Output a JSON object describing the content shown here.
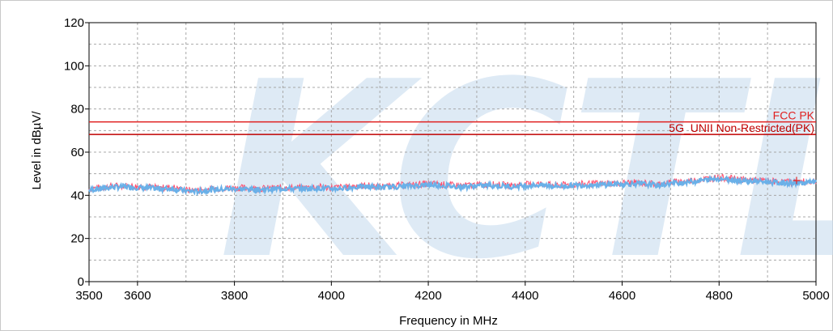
{
  "chart_data": {
    "type": "line",
    "xlabel": "Frequency in MHz",
    "ylabel": "Level in dBµV/",
    "xlim": [
      3500,
      5000
    ],
    "ylim": [
      0,
      120
    ],
    "x_ticks": [
      3500,
      3600,
      3800,
      4000,
      4200,
      4400,
      4600,
      4800,
      5000
    ],
    "y_ticks": [
      0,
      20,
      40,
      60,
      80,
      100,
      120
    ],
    "grid": true,
    "watermark": "KCTL",
    "limit_lines": [
      {
        "name": "FCC PK",
        "value": 74,
        "color": "#e02020"
      },
      {
        "name": "5G_UNII Non-Restricted(PK)",
        "value": 68.2,
        "color": "#c00000"
      }
    ],
    "series": [
      {
        "name": "",
        "color": "#6ab0e8",
        "x": [
          3500,
          3525,
          3550,
          3575,
          3600,
          3625,
          3650,
          3675,
          3700,
          3725,
          3750,
          3775,
          3800,
          3825,
          3850,
          3875,
          3900,
          3925,
          3950,
          3975,
          4000,
          4025,
          4050,
          4075,
          4100,
          4125,
          4150,
          4175,
          4200,
          4225,
          4250,
          4275,
          4300,
          4325,
          4350,
          4375,
          4400,
          4425,
          4450,
          4475,
          4500,
          4525,
          4550,
          4575,
          4600,
          4625,
          4650,
          4675,
          4700,
          4725,
          4750,
          4775,
          4800,
          4825,
          4850,
          4875,
          4900,
          4925,
          4950,
          4975,
          5000
        ],
        "values": [
          42.5,
          43.2,
          43.8,
          44.0,
          43.6,
          43.3,
          43.0,
          43.1,
          42.0,
          41.8,
          42.5,
          42.8,
          43.0,
          42.9,
          42.6,
          42.8,
          43.2,
          43.0,
          43.1,
          43.4,
          43.0,
          43.3,
          43.8,
          44.0,
          43.6,
          43.9,
          44.2,
          44.5,
          44.9,
          44.6,
          44.2,
          44.0,
          44.4,
          44.6,
          44.3,
          44.1,
          44.5,
          44.8,
          44.4,
          44.2,
          44.6,
          44.8,
          44.9,
          45.0,
          45.2,
          45.4,
          45.1,
          44.6,
          45.5,
          46.0,
          46.5,
          47.2,
          47.8,
          47.3,
          46.8,
          46.5,
          46.2,
          45.8,
          45.6,
          45.8,
          46.0
        ]
      }
    ],
    "marker": {
      "x": 4960,
      "y": 47.0,
      "color": "#e02020"
    }
  }
}
